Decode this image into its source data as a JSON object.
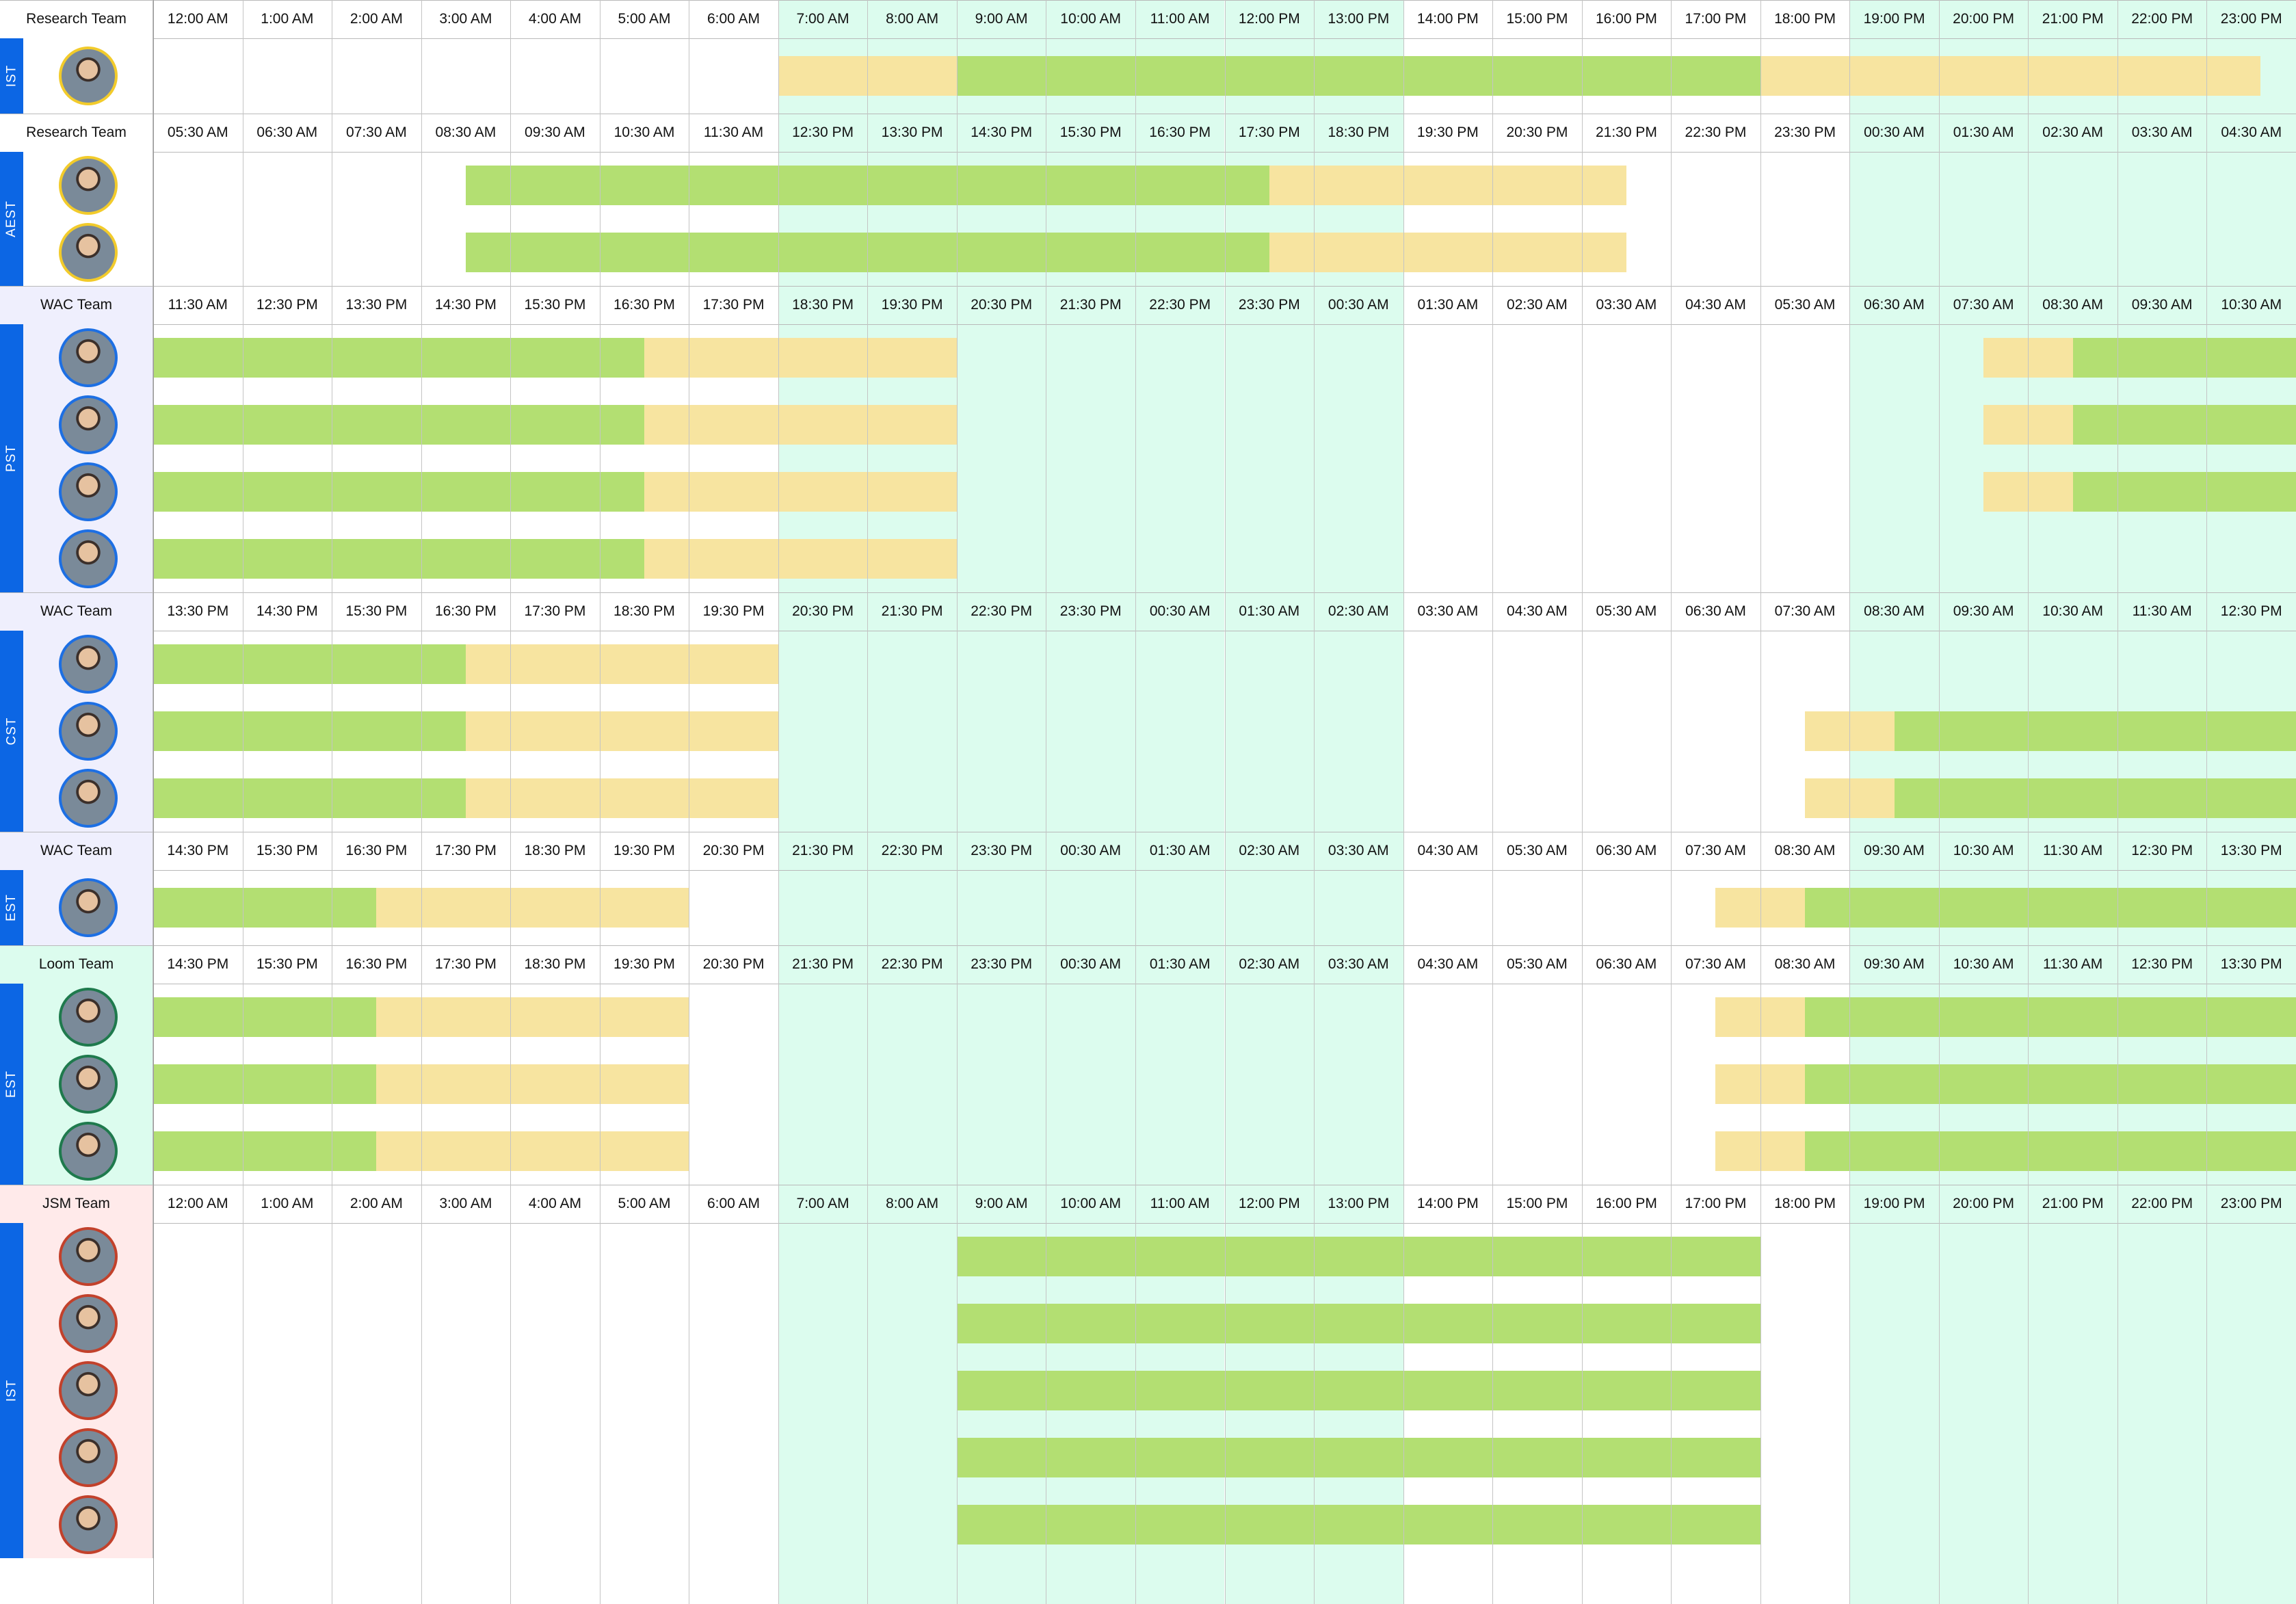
{
  "colors": {
    "working": "#b3df72",
    "flex": "#f7e4a0",
    "overlap": "#dcfcee",
    "grid": "#c4c4c4",
    "tz_strip": "#0c66e4",
    "tz_text": "#ffffff"
  },
  "overlap_columns": [
    7,
    8,
    9,
    10,
    11,
    12,
    13,
    19,
    20,
    21,
    22,
    23,
    24
  ],
  "sections": [
    {
      "team": "Research Team",
      "team_bg": "#ffffff",
      "panel_bg": "#ffffff",
      "timezone": "IST",
      "avatar_ring": "#f2cb2b",
      "header": [
        "12:00 AM",
        "1:00 AM",
        "2:00 AM",
        "3:00 AM",
        "4:00 AM",
        "5:00 AM",
        "6:00 AM",
        "7:00 AM",
        "8:00 AM",
        "9:00 AM",
        "10:00 AM",
        "11:00 AM",
        "12:00 PM",
        "13:00 PM",
        "14:00 PM",
        "15:00 PM",
        "16:00 PM",
        "17:00 PM",
        "18:00 PM",
        "19:00 PM",
        "20:00 PM",
        "21:00 PM",
        "22:00 PM",
        "23:00 PM"
      ],
      "members": [
        {
          "avatar": "member-avatar",
          "spans": [
            [
              7,
              9,
              "flex"
            ],
            [
              9,
              18,
              "working"
            ],
            [
              18,
              23.6,
              "flex"
            ]
          ]
        }
      ]
    },
    {
      "team": "Research Team",
      "team_bg": "#ffffff",
      "panel_bg": "#ffffff",
      "timezone": "AEST",
      "avatar_ring": "#f2cb2b",
      "header": [
        "05:30 AM",
        "06:30 AM",
        "07:30 AM",
        "08:30 AM",
        "09:30 AM",
        "10:30 AM",
        "11:30 AM",
        "12:30 PM",
        "13:30 PM",
        "14:30 PM",
        "15:30 PM",
        "16:30 PM",
        "17:30 PM",
        "18:30 PM",
        "19:30 PM",
        "20:30 PM",
        "21:30 PM",
        "22:30 PM",
        "23:30 PM",
        "00:30 AM",
        "01:30 AM",
        "02:30 AM",
        "03:30 AM",
        "04:30 AM"
      ],
      "members": [
        {
          "avatar": "member-avatar",
          "spans": [
            [
              3.5,
              12.5,
              "working"
            ],
            [
              12.5,
              16.5,
              "flex"
            ]
          ]
        },
        {
          "avatar": "member-avatar",
          "spans": [
            [
              3.5,
              12.5,
              "working"
            ],
            [
              12.5,
              16.5,
              "flex"
            ]
          ]
        }
      ]
    },
    {
      "team": "WAC Team",
      "team_bg": "#efeffd",
      "panel_bg": "#efeffd",
      "timezone": "PST",
      "avatar_ring": "#1d6fe3",
      "header": [
        "11:30 AM",
        "12:30 PM",
        "13:30 PM",
        "14:30 PM",
        "15:30 PM",
        "16:30 PM",
        "17:30 PM",
        "18:30 PM",
        "19:30 PM",
        "20:30 PM",
        "21:30 PM",
        "22:30 PM",
        "23:30 PM",
        "00:30 AM",
        "01:30 AM",
        "02:30 AM",
        "03:30 AM",
        "04:30 AM",
        "05:30 AM",
        "06:30 AM",
        "07:30 AM",
        "08:30 AM",
        "09:30 AM",
        "10:30 AM"
      ],
      "members": [
        {
          "avatar": "member-avatar",
          "spans": [
            [
              0,
              5.5,
              "working"
            ],
            [
              5.5,
              9,
              "flex"
            ],
            [
              20.5,
              21.5,
              "flex"
            ],
            [
              21.5,
              24,
              "working"
            ]
          ]
        },
        {
          "avatar": "member-avatar",
          "spans": [
            [
              0,
              5.5,
              "working"
            ],
            [
              5.5,
              9,
              "flex"
            ],
            [
              20.5,
              21.5,
              "flex"
            ],
            [
              21.5,
              24,
              "working"
            ]
          ]
        },
        {
          "avatar": "member-avatar",
          "spans": [
            [
              0,
              5.5,
              "working"
            ],
            [
              5.5,
              9,
              "flex"
            ],
            [
              20.5,
              21.5,
              "flex"
            ],
            [
              21.5,
              24,
              "working"
            ]
          ]
        },
        {
          "avatar": "member-avatar",
          "spans": [
            [
              0,
              5.5,
              "working"
            ],
            [
              5.5,
              9,
              "flex"
            ]
          ]
        }
      ]
    },
    {
      "team": "WAC Team",
      "team_bg": "#efeffd",
      "panel_bg": "#efeffd",
      "timezone": "CST",
      "avatar_ring": "#1d6fe3",
      "header": [
        "13:30 PM",
        "14:30 PM",
        "15:30 PM",
        "16:30 PM",
        "17:30 PM",
        "18:30 PM",
        "19:30 PM",
        "20:30 PM",
        "21:30 PM",
        "22:30 PM",
        "23:30 PM",
        "00:30 AM",
        "01:30 AM",
        "02:30 AM",
        "03:30 AM",
        "04:30 AM",
        "05:30 AM",
        "06:30 AM",
        "07:30 AM",
        "08:30 AM",
        "09:30 AM",
        "10:30 AM",
        "11:30 AM",
        "12:30 PM"
      ],
      "members": [
        {
          "avatar": "member-avatar",
          "spans": [
            [
              0,
              3.5,
              "working"
            ],
            [
              3.5,
              7,
              "flex"
            ]
          ]
        },
        {
          "avatar": "member-avatar",
          "spans": [
            [
              0,
              3.5,
              "working"
            ],
            [
              3.5,
              7,
              "flex"
            ],
            [
              18.5,
              19.5,
              "flex"
            ],
            [
              19.5,
              24,
              "working"
            ]
          ]
        },
        {
          "avatar": "member-avatar",
          "spans": [
            [
              0,
              3.5,
              "working"
            ],
            [
              3.5,
              7,
              "flex"
            ],
            [
              18.5,
              19.5,
              "flex"
            ],
            [
              19.5,
              24,
              "working"
            ]
          ]
        }
      ]
    },
    {
      "team": "WAC Team",
      "team_bg": "#efeffd",
      "panel_bg": "#efeffd",
      "timezone": "EST",
      "avatar_ring": "#1d6fe3",
      "header": [
        "14:30 PM",
        "15:30 PM",
        "16:30 PM",
        "17:30 PM",
        "18:30 PM",
        "19:30 PM",
        "20:30 PM",
        "21:30 PM",
        "22:30 PM",
        "23:30 PM",
        "00:30 AM",
        "01:30 AM",
        "02:30 AM",
        "03:30 AM",
        "04:30 AM",
        "05:30 AM",
        "06:30 AM",
        "07:30 AM",
        "08:30 AM",
        "09:30 AM",
        "10:30 AM",
        "11:30 AM",
        "12:30 PM",
        "13:30 PM"
      ],
      "members": [
        {
          "avatar": "member-avatar",
          "spans": [
            [
              0,
              2.5,
              "working"
            ],
            [
              2.5,
              6,
              "flex"
            ],
            [
              17.5,
              18.5,
              "flex"
            ],
            [
              18.5,
              24,
              "working"
            ]
          ]
        }
      ]
    },
    {
      "team": "Loom Team",
      "team_bg": "#dcfcee",
      "panel_bg": "#dcfcee",
      "timezone": "EST",
      "avatar_ring": "#1f7a4d",
      "header": [
        "14:30 PM",
        "15:30 PM",
        "16:30 PM",
        "17:30 PM",
        "18:30 PM",
        "19:30 PM",
        "20:30 PM",
        "21:30 PM",
        "22:30 PM",
        "23:30 PM",
        "00:30 AM",
        "01:30 AM",
        "02:30 AM",
        "03:30 AM",
        "04:30 AM",
        "05:30 AM",
        "06:30 AM",
        "07:30 AM",
        "08:30 AM",
        "09:30 AM",
        "10:30 AM",
        "11:30 AM",
        "12:30 PM",
        "13:30 PM"
      ],
      "members": [
        {
          "avatar": "member-avatar",
          "spans": [
            [
              0,
              2.5,
              "working"
            ],
            [
              2.5,
              6,
              "flex"
            ],
            [
              17.5,
              18.5,
              "flex"
            ],
            [
              18.5,
              24,
              "working"
            ]
          ]
        },
        {
          "avatar": "member-avatar",
          "spans": [
            [
              0,
              2.5,
              "working"
            ],
            [
              2.5,
              6,
              "flex"
            ],
            [
              17.5,
              18.5,
              "flex"
            ],
            [
              18.5,
              24,
              "working"
            ]
          ]
        },
        {
          "avatar": "member-avatar",
          "spans": [
            [
              0,
              2.5,
              "working"
            ],
            [
              2.5,
              6,
              "flex"
            ],
            [
              17.5,
              18.5,
              "flex"
            ],
            [
              18.5,
              24,
              "working"
            ]
          ]
        }
      ]
    },
    {
      "team": "JSM Team",
      "team_bg": "#ffeaea",
      "panel_bg": "#ffeaea",
      "timezone": "IST",
      "avatar_ring": "#c2412b",
      "header": [
        "12:00 AM",
        "1:00 AM",
        "2:00 AM",
        "3:00 AM",
        "4:00 AM",
        "5:00 AM",
        "6:00 AM",
        "7:00 AM",
        "8:00 AM",
        "9:00 AM",
        "10:00 AM",
        "11:00 AM",
        "12:00 PM",
        "13:00 PM",
        "14:00 PM",
        "15:00 PM",
        "16:00 PM",
        "17:00 PM",
        "18:00 PM",
        "19:00 PM",
        "20:00 PM",
        "21:00 PM",
        "22:00 PM",
        "23:00 PM"
      ],
      "members": [
        {
          "avatar": "member-avatar",
          "spans": [
            [
              9,
              18,
              "working"
            ]
          ]
        },
        {
          "avatar": "member-avatar",
          "spans": [
            [
              9,
              18,
              "working"
            ]
          ]
        },
        {
          "avatar": "member-avatar",
          "spans": [
            [
              9,
              18,
              "working"
            ]
          ]
        },
        {
          "avatar": "member-avatar",
          "spans": [
            [
              9,
              18,
              "working"
            ]
          ]
        },
        {
          "avatar": "member-avatar",
          "spans": [
            [
              9,
              18,
              "working"
            ]
          ]
        }
      ]
    }
  ]
}
